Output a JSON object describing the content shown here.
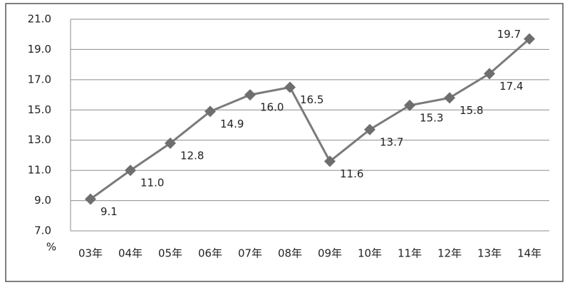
{
  "chart_data": {
    "type": "line",
    "categories": [
      "03年",
      "04年",
      "05年",
      "06年",
      "07年",
      "08年",
      "09年",
      "10年",
      "11年",
      "12年",
      "13年",
      "14年"
    ],
    "values": [
      9.1,
      11,
      12.8,
      14.9,
      16,
      16.5,
      11.6,
      13.7,
      15.3,
      15.8,
      17.4,
      19.7
    ],
    "value_labels": [
      "9.1",
      "11.0",
      "12.8",
      "14.9",
      "16.0",
      "16.5",
      "11.6",
      "13.7",
      "15.3",
      "15.8",
      "17.4",
      "19.7"
    ],
    "color": "#7a7a7a",
    "marker_color": "#6e6e6e",
    "ylabel": "%",
    "ylim": [
      7,
      21
    ],
    "yticks": [
      {
        "value": 7,
        "label": "7.0"
      },
      {
        "value": 9,
        "label": "9.0"
      },
      {
        "value": 11,
        "label": "11.0"
      },
      {
        "value": 13,
        "label": "13.0"
      },
      {
        "value": 15,
        "label": "15.0"
      },
      {
        "value": 17,
        "label": "17.0"
      },
      {
        "value": 19,
        "label": "19.0"
      },
      {
        "value": 21,
        "label": "21.0"
      }
    ],
    "grid": true
  }
}
